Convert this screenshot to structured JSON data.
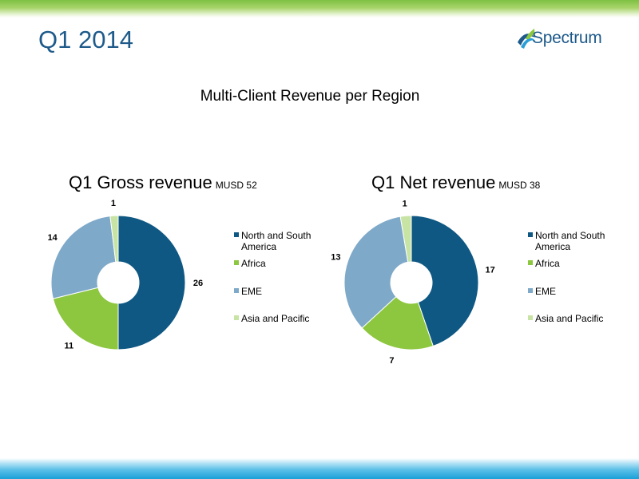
{
  "slide": {
    "title": "Q1 2014",
    "logo_text": "Spectrum",
    "subtitle": "Multi-Client Revenue per Region"
  },
  "colors": {
    "north_south_america": "#0f5883",
    "africa": "#8dc63f",
    "eme": "#7ea9c9",
    "asia_pacific": "#c7e4a4",
    "title": "#1e5a8a"
  },
  "chart_data": [
    {
      "type": "pie",
      "title": "Q1 Gross revenue",
      "unit": "MUSD 52",
      "categories": [
        "North and South America",
        "Africa",
        "EME",
        "Asia and Pacific"
      ],
      "values": [
        26,
        11,
        14,
        1
      ],
      "colors": [
        "#0f5883",
        "#8dc63f",
        "#7ea9c9",
        "#c7e4a4"
      ],
      "legend": "right"
    },
    {
      "type": "pie",
      "title": "Q1 Net revenue",
      "unit": "MUSD 38",
      "categories": [
        "North and South America",
        "Africa",
        "EME",
        "Asia and Pacific"
      ],
      "values": [
        17,
        7,
        13,
        1
      ],
      "colors": [
        "#0f5883",
        "#8dc63f",
        "#7ea9c9",
        "#c7e4a4"
      ],
      "legend": "right"
    }
  ]
}
